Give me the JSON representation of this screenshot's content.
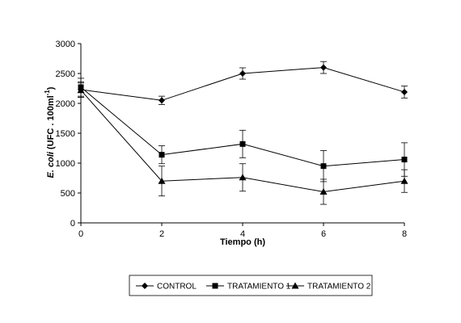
{
  "chart_data": {
    "type": "line",
    "xlabel": "Tiempo (h)",
    "ylabel": {
      "italic": "E. coli",
      "rest": " (UFC . 100ml",
      "sup": "-1",
      "close": ")"
    },
    "x": [
      0,
      2,
      4,
      6,
      8
    ],
    "xlim": [
      0,
      8
    ],
    "ylim": [
      0,
      3000
    ],
    "xticks": [
      "0",
      "2",
      "4",
      "6",
      "8"
    ],
    "yticks": [
      "0",
      "500",
      "1000",
      "1500",
      "2000",
      "2500",
      "3000"
    ],
    "grid": false,
    "legend_position": "bottom",
    "series": [
      {
        "name": "CONTROL",
        "marker": "diamond",
        "values": [
          2230,
          2050,
          2500,
          2600,
          2190
        ],
        "errors": [
          130,
          70,
          95,
          100,
          100
        ]
      },
      {
        "name": "TRATAMIENTO 1",
        "marker": "square",
        "values": [
          2270,
          1140,
          1320,
          950,
          1060
        ],
        "errors": [
          150,
          150,
          230,
          260,
          280
        ]
      },
      {
        "name": "TRATAMIENTO 2",
        "marker": "triangle",
        "values": [
          2220,
          700,
          760,
          520,
          700
        ],
        "errors": [
          120,
          250,
          230,
          210,
          190
        ]
      }
    ]
  }
}
